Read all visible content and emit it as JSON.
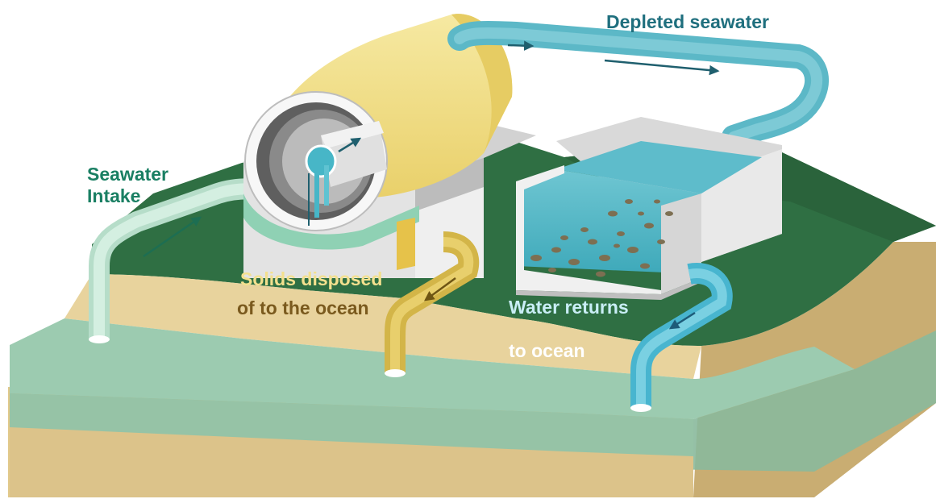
{
  "labels": {
    "depleted_seawater": "Depleted seawater",
    "seawater_intake_line1": "Seawater",
    "seawater_intake_line2": "Intake",
    "solids_line1": "Solids disposed",
    "solids_line2": "of to the ocean",
    "water_returns_line1": "Water returns",
    "water_returns_line2": "to ocean"
  },
  "colors": {
    "grass": "#2f6f43",
    "grass_dark": "#2a633b",
    "sand": "#e6cf97",
    "sea": "#8fc4a4",
    "intake_pipe": "#c4e6d6",
    "depleted_pipe": "#65c0cf",
    "solids_pipe": "#d9bd55",
    "return_pipe": "#5cbfd6",
    "drum": "#f1df87",
    "concrete": "#e6e6e6"
  }
}
